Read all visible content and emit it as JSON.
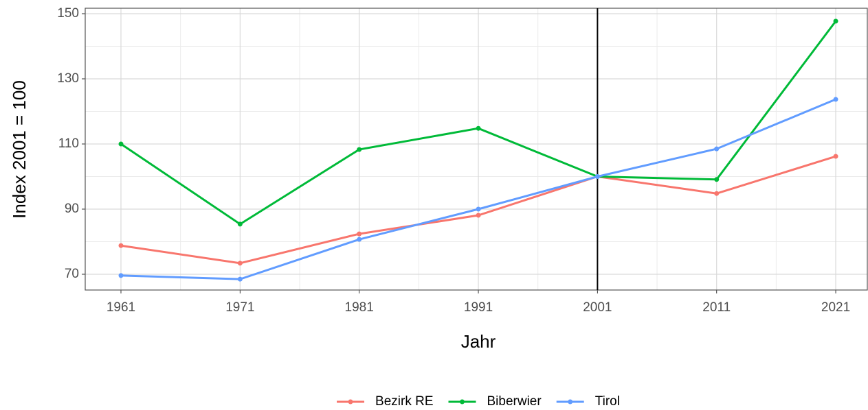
{
  "chart_data": {
    "type": "line",
    "x_label": "Jahr",
    "y_label": "Index 2001 = 100",
    "x": [
      1961,
      1971,
      1981,
      1991,
      2001,
      2011,
      2021
    ],
    "series": [
      {
        "name": "Bezirk RE",
        "color": "#F8766D",
        "values": [
          78.8,
          73.4,
          82.4,
          88.1,
          100,
          94.8,
          106.2
        ]
      },
      {
        "name": "Biberwier",
        "color": "#00BA38",
        "values": [
          110.0,
          85.4,
          108.3,
          114.8,
          100,
          99.1,
          147.7
        ]
      },
      {
        "name": "Tirol",
        "color": "#619CFF",
        "values": [
          69.6,
          68.5,
          80.7,
          90.0,
          100,
          108.5,
          123.7
        ]
      }
    ],
    "xlim": [
      1958,
      2023.65
    ],
    "xticks": [
      1961,
      1971,
      1981,
      1991,
      2001,
      2011,
      2021
    ],
    "xticks_minor": [
      1966,
      1976,
      1986,
      1996,
      2006,
      2016
    ],
    "ylim": [
      65.16,
      151.68
    ],
    "yticks": [
      70,
      90,
      110,
      130,
      150
    ],
    "yticks_minor": [
      80,
      100,
      120,
      140
    ],
    "vline": 2001,
    "grid": true,
    "legend": "bottom"
  }
}
